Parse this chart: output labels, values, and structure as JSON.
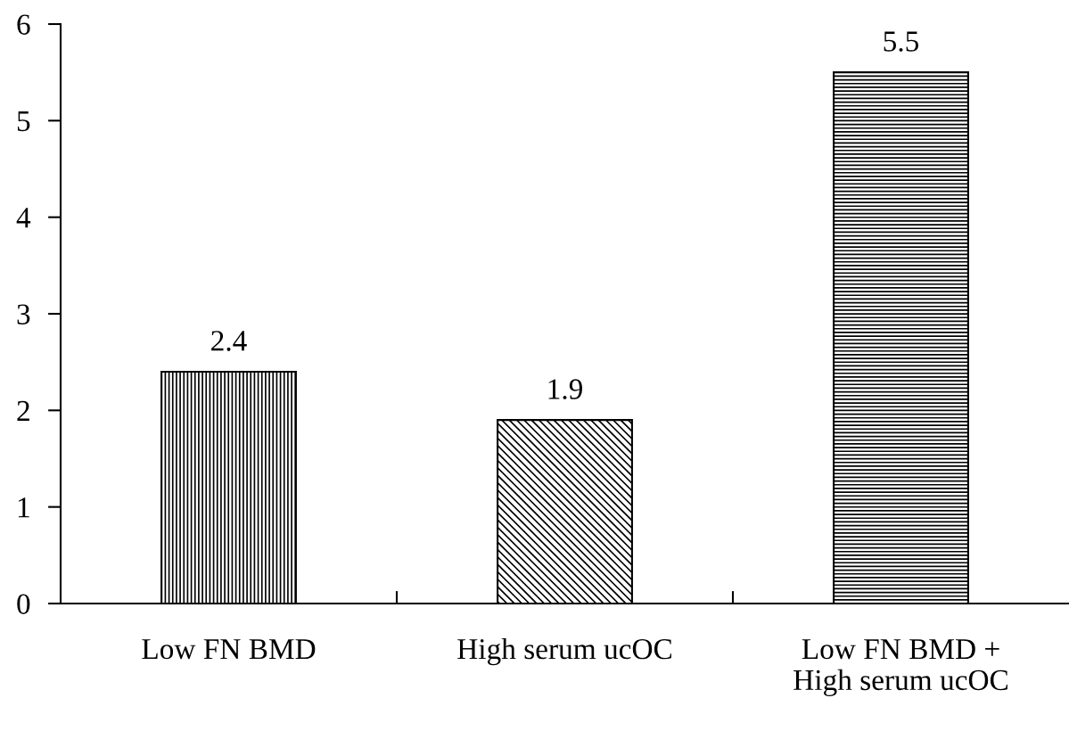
{
  "chart_data": {
    "type": "bar",
    "categories": [
      "Low FN BMD",
      "High serum ucOC",
      "Low FN BMD +\nHigh serum ucOC"
    ],
    "values": [
      2.4,
      1.9,
      5.5
    ],
    "color": "#000000",
    "ylim": [
      0,
      6
    ],
    "yticks": [
      0,
      1,
      2,
      3,
      4,
      5,
      6
    ],
    "data_labels": true,
    "grid": false,
    "legend": false
  }
}
